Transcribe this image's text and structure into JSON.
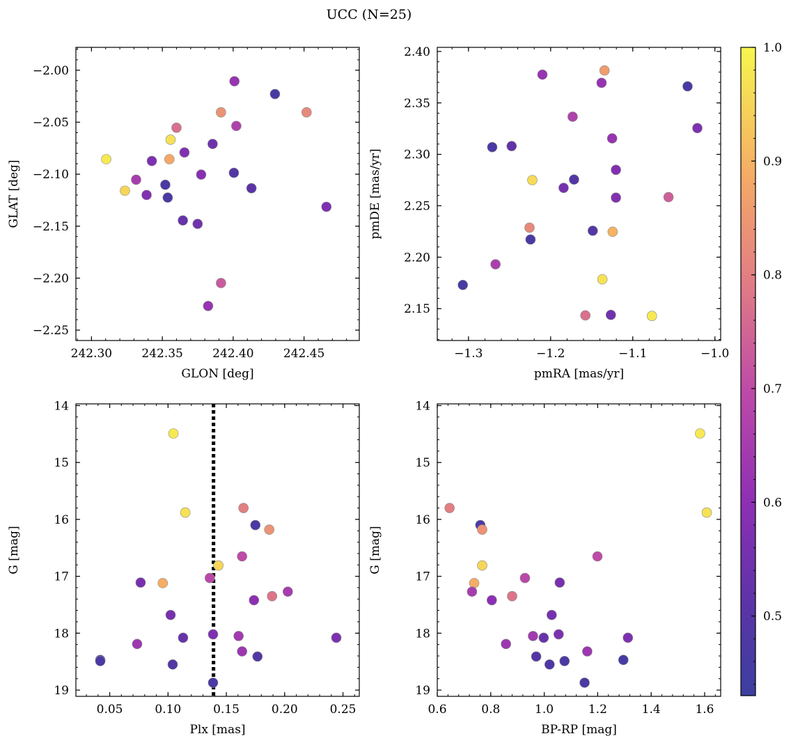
{
  "figure_title": "UCC (N=25)",
  "colorbar": {
    "range": [
      0.43,
      1.0
    ],
    "colormap": "plasma",
    "ticks": [
      "0.5",
      "0.6",
      "0.7",
      "0.8",
      "0.9",
      "1.0"
    ]
  },
  "chart_data": [
    {
      "type": "scatter",
      "xlabel": "GLON [deg]",
      "ylabel": "GLAT [deg]",
      "xlim": [
        242.289,
        242.489
      ],
      "ylim": [
        -2.26,
        -1.978
      ],
      "y_inverted": false,
      "xticks": [
        "242.30",
        "242.35",
        "242.40",
        "242.45"
      ],
      "yticks": [
        "−2.00",
        "−2.05",
        "−2.10",
        "−2.15",
        "−2.20",
        "−2.25"
      ],
      "points": [
        {
          "x": 242.4009,
          "y": -2.0106,
          "c": 0.62
        },
        {
          "x": 242.4295,
          "y": -2.0229,
          "c": 0.46
        },
        {
          "x": 242.3914,
          "y": -2.0405,
          "c": 0.84
        },
        {
          "x": 242.4518,
          "y": -2.0405,
          "c": 0.82
        },
        {
          "x": 242.4022,
          "y": -2.0536,
          "c": 0.67
        },
        {
          "x": 242.36,
          "y": -2.0553,
          "c": 0.77
        },
        {
          "x": 242.3558,
          "y": -2.0668,
          "c": 0.97
        },
        {
          "x": 242.3855,
          "y": -2.0709,
          "c": 0.54
        },
        {
          "x": 242.3656,
          "y": -2.0791,
          "c": 0.58
        },
        {
          "x": 242.3104,
          "y": -2.0856,
          "c": 0.98
        },
        {
          "x": 242.355,
          "y": -2.0856,
          "c": 0.88
        },
        {
          "x": 242.3426,
          "y": -2.0873,
          "c": 0.57
        },
        {
          "x": 242.4005,
          "y": -2.0987,
          "c": 0.49
        },
        {
          "x": 242.3774,
          "y": -2.1004,
          "c": 0.59
        },
        {
          "x": 242.3315,
          "y": -2.1053,
          "c": 0.65
        },
        {
          "x": 242.3521,
          "y": -2.1102,
          "c": 0.47
        },
        {
          "x": 242.4129,
          "y": -2.1135,
          "c": 0.51
        },
        {
          "x": 242.3236,
          "y": -2.1159,
          "c": 0.95
        },
        {
          "x": 242.3389,
          "y": -2.12,
          "c": 0.58
        },
        {
          "x": 242.3538,
          "y": -2.1225,
          "c": 0.47
        },
        {
          "x": 242.4658,
          "y": -2.1314,
          "c": 0.57
        },
        {
          "x": 242.3645,
          "y": -2.1445,
          "c": 0.53
        },
        {
          "x": 242.3749,
          "y": -2.1478,
          "c": 0.55
        },
        {
          "x": 242.3914,
          "y": -2.2047,
          "c": 0.73
        },
        {
          "x": 242.3823,
          "y": -2.2268,
          "c": 0.62
        }
      ]
    },
    {
      "type": "scatter",
      "xlabel": "pmRA [mas/yr]",
      "ylabel": "pmDE [mas/yr]",
      "xlim": [
        -1.338,
        -0.993
      ],
      "ylim": [
        2.119,
        2.404
      ],
      "y_inverted": false,
      "xticks": [
        "−1.3",
        "−1.2",
        "−1.1",
        "−1.0"
      ],
      "yticks": [
        "2.15",
        "2.20",
        "2.25",
        "2.30",
        "2.35",
        "2.40"
      ],
      "points": [
        {
          "x": -1.1344,
          "y": 2.3815,
          "c": 0.86
        },
        {
          "x": -1.21,
          "y": 2.3775,
          "c": 0.62
        },
        {
          "x": -1.138,
          "y": 2.3695,
          "c": 0.62
        },
        {
          "x": -1.0333,
          "y": 2.3661,
          "c": 0.46
        },
        {
          "x": -1.1732,
          "y": 2.3366,
          "c": 0.67
        },
        {
          "x": -1.0214,
          "y": 2.3255,
          "c": 0.57
        },
        {
          "x": -1.1251,
          "y": 2.3155,
          "c": 0.62
        },
        {
          "x": -1.2475,
          "y": 2.308,
          "c": 0.52
        },
        {
          "x": -1.2711,
          "y": 2.307,
          "c": 0.47
        },
        {
          "x": -1.1205,
          "y": 2.2849,
          "c": 0.58
        },
        {
          "x": -1.2223,
          "y": 2.2749,
          "c": 0.96
        },
        {
          "x": -1.1715,
          "y": 2.2755,
          "c": 0.49
        },
        {
          "x": -1.1842,
          "y": 2.2674,
          "c": 0.56
        },
        {
          "x": -1.0565,
          "y": 2.2584,
          "c": 0.74
        },
        {
          "x": -1.1205,
          "y": 2.2579,
          "c": 0.58
        },
        {
          "x": -1.2257,
          "y": 2.2287,
          "c": 0.82
        },
        {
          "x": -1.1245,
          "y": 2.2247,
          "c": 0.9
        },
        {
          "x": -1.1487,
          "y": 2.2257,
          "c": 0.49
        },
        {
          "x": -1.2245,
          "y": 2.2172,
          "c": 0.47
        },
        {
          "x": -1.2671,
          "y": 2.1931,
          "c": 0.66
        },
        {
          "x": -1.137,
          "y": 2.1785,
          "c": 0.97
        },
        {
          "x": -1.3069,
          "y": 2.173,
          "c": 0.46
        },
        {
          "x": -1.1577,
          "y": 2.1434,
          "c": 0.77
        },
        {
          "x": -1.1267,
          "y": 2.1439,
          "c": 0.55
        },
        {
          "x": -1.0767,
          "y": 2.1429,
          "c": 0.98
        }
      ]
    },
    {
      "type": "scatter",
      "xlabel": "Plx [mas]",
      "ylabel": "G [mag]",
      "xlim": [
        0.021,
        0.264
      ],
      "ylim": [
        19.11,
        13.97
      ],
      "y_inverted": true,
      "xticks": [
        "0.05",
        "0.10",
        "0.15",
        "0.20",
        "0.25"
      ],
      "yticks": [
        "14",
        "15",
        "16",
        "17",
        "18",
        "19"
      ],
      "vline": {
        "x": 0.139,
        "style": "dotted"
      },
      "points": [
        {
          "x": 0.1046,
          "y": 14.49,
          "c": 0.98
        },
        {
          "x": 0.1647,
          "y": 15.8,
          "c": 0.8
        },
        {
          "x": 0.1148,
          "y": 15.88,
          "c": 0.97
        },
        {
          "x": 0.1749,
          "y": 16.1,
          "c": 0.47
        },
        {
          "x": 0.1868,
          "y": 16.18,
          "c": 0.84
        },
        {
          "x": 0.1635,
          "y": 16.65,
          "c": 0.7
        },
        {
          "x": 0.1432,
          "y": 16.81,
          "c": 0.95
        },
        {
          "x": 0.1358,
          "y": 17.03,
          "c": 0.69
        },
        {
          "x": 0.0765,
          "y": 17.11,
          "c": 0.56
        },
        {
          "x": 0.0955,
          "y": 17.12,
          "c": 0.89
        },
        {
          "x": 0.2027,
          "y": 17.27,
          "c": 0.65
        },
        {
          "x": 0.1892,
          "y": 17.35,
          "c": 0.78
        },
        {
          "x": 0.1737,
          "y": 17.42,
          "c": 0.6
        },
        {
          "x": 0.1022,
          "y": 17.68,
          "c": 0.56
        },
        {
          "x": 0.1386,
          "y": 18.02,
          "c": 0.57
        },
        {
          "x": 0.1605,
          "y": 18.05,
          "c": 0.64
        },
        {
          "x": 0.1129,
          "y": 18.08,
          "c": 0.53
        },
        {
          "x": 0.2443,
          "y": 18.08,
          "c": 0.57
        },
        {
          "x": 0.0735,
          "y": 18.19,
          "c": 0.63
        },
        {
          "x": 0.1635,
          "y": 18.32,
          "c": 0.63
        },
        {
          "x": 0.1767,
          "y": 18.41,
          "c": 0.49
        },
        {
          "x": 0.0419,
          "y": 18.47,
          "c": 0.46
        },
        {
          "x": 0.0419,
          "y": 18.49,
          "c": 0.47
        },
        {
          "x": 0.104,
          "y": 18.55,
          "c": 0.48
        },
        {
          "x": 0.1386,
          "y": 18.87,
          "c": 0.47
        }
      ]
    },
    {
      "type": "scatter",
      "xlabel": "BP-RP [mag]",
      "ylabel": "G [mag]",
      "xlim": [
        0.6,
        1.66
      ],
      "ylim": [
        19.11,
        13.97
      ],
      "y_inverted": true,
      "xticks": [
        "0.6",
        "0.8",
        "1.0",
        "1.2",
        "1.4",
        "1.6"
      ],
      "yticks": [
        "14",
        "15",
        "16",
        "17",
        "18",
        "19"
      ],
      "points": [
        {
          "x": 1.583,
          "y": 14.49,
          "c": 0.98
        },
        {
          "x": 0.646,
          "y": 15.8,
          "c": 0.8
        },
        {
          "x": 1.608,
          "y": 15.88,
          "c": 0.97
        },
        {
          "x": 0.761,
          "y": 16.1,
          "c": 0.47
        },
        {
          "x": 0.768,
          "y": 16.18,
          "c": 0.84
        },
        {
          "x": 1.199,
          "y": 16.65,
          "c": 0.7
        },
        {
          "x": 0.768,
          "y": 16.81,
          "c": 0.95
        },
        {
          "x": 0.928,
          "y": 17.03,
          "c": 0.69
        },
        {
          "x": 1.058,
          "y": 17.11,
          "c": 0.56
        },
        {
          "x": 0.738,
          "y": 17.12,
          "c": 0.89
        },
        {
          "x": 0.73,
          "y": 17.27,
          "c": 0.65
        },
        {
          "x": 0.88,
          "y": 17.35,
          "c": 0.78
        },
        {
          "x": 0.804,
          "y": 17.42,
          "c": 0.6
        },
        {
          "x": 1.028,
          "y": 17.68,
          "c": 0.56
        },
        {
          "x": 1.054,
          "y": 18.02,
          "c": 0.57
        },
        {
          "x": 0.958,
          "y": 18.05,
          "c": 0.64
        },
        {
          "x": 0.998,
          "y": 18.08,
          "c": 0.53
        },
        {
          "x": 1.313,
          "y": 18.08,
          "c": 0.57
        },
        {
          "x": 0.857,
          "y": 18.19,
          "c": 0.63
        },
        {
          "x": 1.161,
          "y": 18.32,
          "c": 0.63
        },
        {
          "x": 0.97,
          "y": 18.41,
          "c": 0.49
        },
        {
          "x": 1.076,
          "y": 18.49,
          "c": 0.47
        },
        {
          "x": 1.296,
          "y": 18.47,
          "c": 0.46
        },
        {
          "x": 1.02,
          "y": 18.55,
          "c": 0.48
        },
        {
          "x": 1.151,
          "y": 18.87,
          "c": 0.47
        }
      ]
    }
  ]
}
